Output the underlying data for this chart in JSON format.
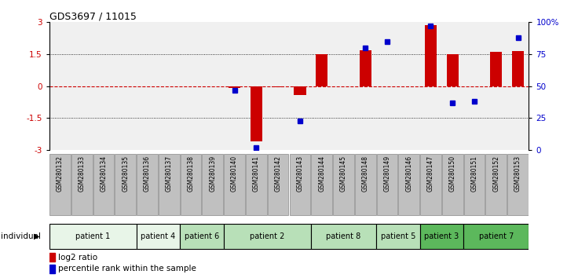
{
  "title": "GDS3697 / 11015",
  "samples": [
    "GSM280132",
    "GSM280133",
    "GSM280134",
    "GSM280135",
    "GSM280136",
    "GSM280137",
    "GSM280138",
    "GSM280139",
    "GSM280140",
    "GSM280141",
    "GSM280142",
    "GSM280143",
    "GSM280144",
    "GSM280145",
    "GSM280148",
    "GSM280149",
    "GSM280146",
    "GSM280147",
    "GSM280150",
    "GSM280151",
    "GSM280152",
    "GSM280153"
  ],
  "log2_ratio": [
    0,
    0,
    0,
    0,
    0,
    0,
    0,
    0,
    -0.08,
    -2.6,
    -0.05,
    -0.4,
    1.5,
    0,
    1.7,
    0,
    0,
    2.85,
    1.5,
    0,
    1.6,
    1.65
  ],
  "percentile": [
    null,
    null,
    null,
    null,
    null,
    null,
    null,
    null,
    47,
    2,
    null,
    23,
    null,
    null,
    80,
    85,
    null,
    97,
    37,
    38,
    null,
    88
  ],
  "ylim_left": [
    -3,
    3
  ],
  "ylim_right": [
    0,
    100
  ],
  "yticks_left": [
    -3,
    -1.5,
    0,
    1.5,
    3
  ],
  "yticks_right": [
    0,
    25,
    50,
    75,
    100
  ],
  "ytick_labels_right": [
    "0",
    "25",
    "50",
    "75",
    "100%"
  ],
  "bar_color": "#cc0000",
  "dot_color": "#0000cc",
  "zero_line_color": "#cc0000",
  "grid_color": "#000000",
  "patients": [
    {
      "label": "patient 1",
      "start": 0,
      "end": 4,
      "color": "#e8f5e8"
    },
    {
      "label": "patient 4",
      "start": 4,
      "end": 6,
      "color": "#e8f5e8"
    },
    {
      "label": "patient 6",
      "start": 6,
      "end": 8,
      "color": "#b8e0b8"
    },
    {
      "label": "patient 2",
      "start": 8,
      "end": 12,
      "color": "#b8e0b8"
    },
    {
      "label": "patient 8",
      "start": 12,
      "end": 15,
      "color": "#b8e0b8"
    },
    {
      "label": "patient 5",
      "start": 15,
      "end": 17,
      "color": "#b8e0b8"
    },
    {
      "label": "patient 3",
      "start": 17,
      "end": 19,
      "color": "#5cb85c"
    },
    {
      "label": "patient 7",
      "start": 19,
      "end": 22,
      "color": "#5cb85c"
    }
  ],
  "legend_bar_label": "log2 ratio",
  "legend_dot_label": "percentile rank within the sample",
  "individual_label": "individual",
  "background_color": "#ffffff",
  "plot_bg_color": "#f0f0f0",
  "tick_label_color_left": "#cc0000",
  "tick_label_color_right": "#0000cc",
  "sample_box_color": "#c0c0c0",
  "sample_box_edge": "#888888"
}
